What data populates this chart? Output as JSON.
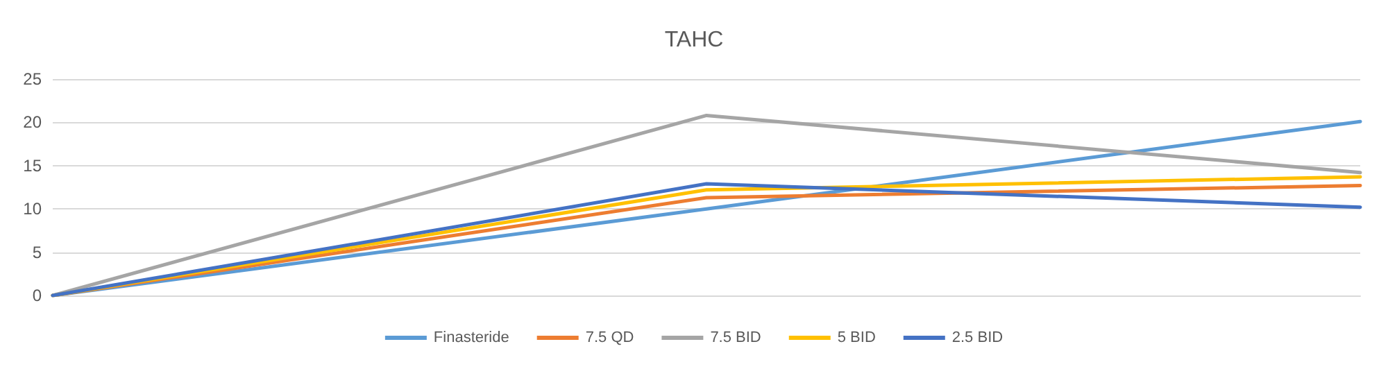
{
  "chart_data": {
    "type": "line",
    "title": "TAHC",
    "categories": [
      null,
      null,
      null
    ],
    "ylim": [
      0,
      25
    ],
    "yticks": [
      0,
      5,
      10,
      15,
      20,
      25
    ],
    "grid": "y",
    "legend": "bottom",
    "marker": "none",
    "line_style": "solid",
    "series": [
      {
        "name": "Finasteride",
        "color": "#5b9bd5",
        "values": [
          0,
          10,
          20.1
        ]
      },
      {
        "name": "7.5 QD",
        "color": "#ed7d31",
        "values": [
          0,
          11.3,
          12.7
        ]
      },
      {
        "name": "7.5 BID",
        "color": "#a5a5a5",
        "values": [
          0,
          20.8,
          14.2
        ]
      },
      {
        "name": "5 BID",
        "color": "#ffc000",
        "values": [
          0,
          12.2,
          13.7
        ]
      },
      {
        "name": "2.5 BID",
        "color": "#4472c4",
        "values": [
          0,
          12.9,
          10.2
        ]
      }
    ]
  }
}
